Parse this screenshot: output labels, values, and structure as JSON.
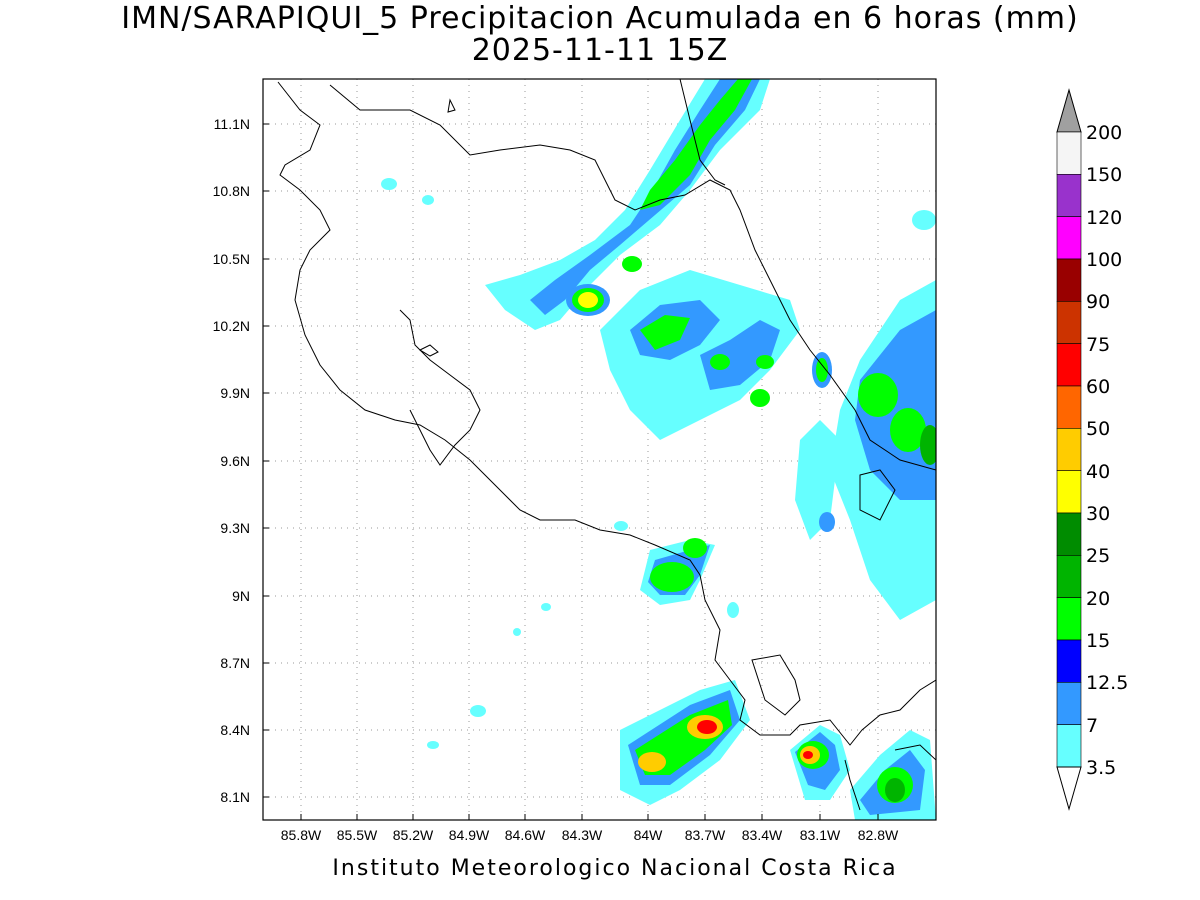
{
  "title_line1": "IMN/SARAPIQUI_5 Precipitacion Acumulada en 6 horas (mm)",
  "title_line2": "2025-11-11 15Z",
  "credit": "Instituto Meteorologico Nacional Costa Rica",
  "lon_ticks": [
    "85.8W",
    "85.5W",
    "85.2W",
    "84.9W",
    "84.6W",
    "84.3W",
    "84W",
    "83.7W",
    "83.4W",
    "83.1W",
    "82.8W"
  ],
  "lat_ticks": [
    "11.1N",
    "10.8N",
    "10.5N",
    "10.2N",
    "9.9N",
    "9.6N",
    "9.3N",
    "9N",
    "8.7N",
    "8.4N",
    "8.1N"
  ],
  "colorbar": {
    "labels": [
      "200",
      "150",
      "120",
      "100",
      "90",
      "75",
      "60",
      "50",
      "40",
      "30",
      "25",
      "20",
      "15",
      "12.5",
      "7",
      "3.5"
    ],
    "colors": [
      "#f5f5f5",
      "#9932cc",
      "#ff00ff",
      "#990000",
      "#cc3300",
      "#ff0000",
      "#ff6600",
      "#ffcc00",
      "#ffff00",
      "#008c00",
      "#00b400",
      "#00ff00",
      "#0000ff",
      "#3399ff",
      "#66ffff"
    ],
    "top_color": "#a0a0a0",
    "bottom_color": "#ffffff"
  }
}
